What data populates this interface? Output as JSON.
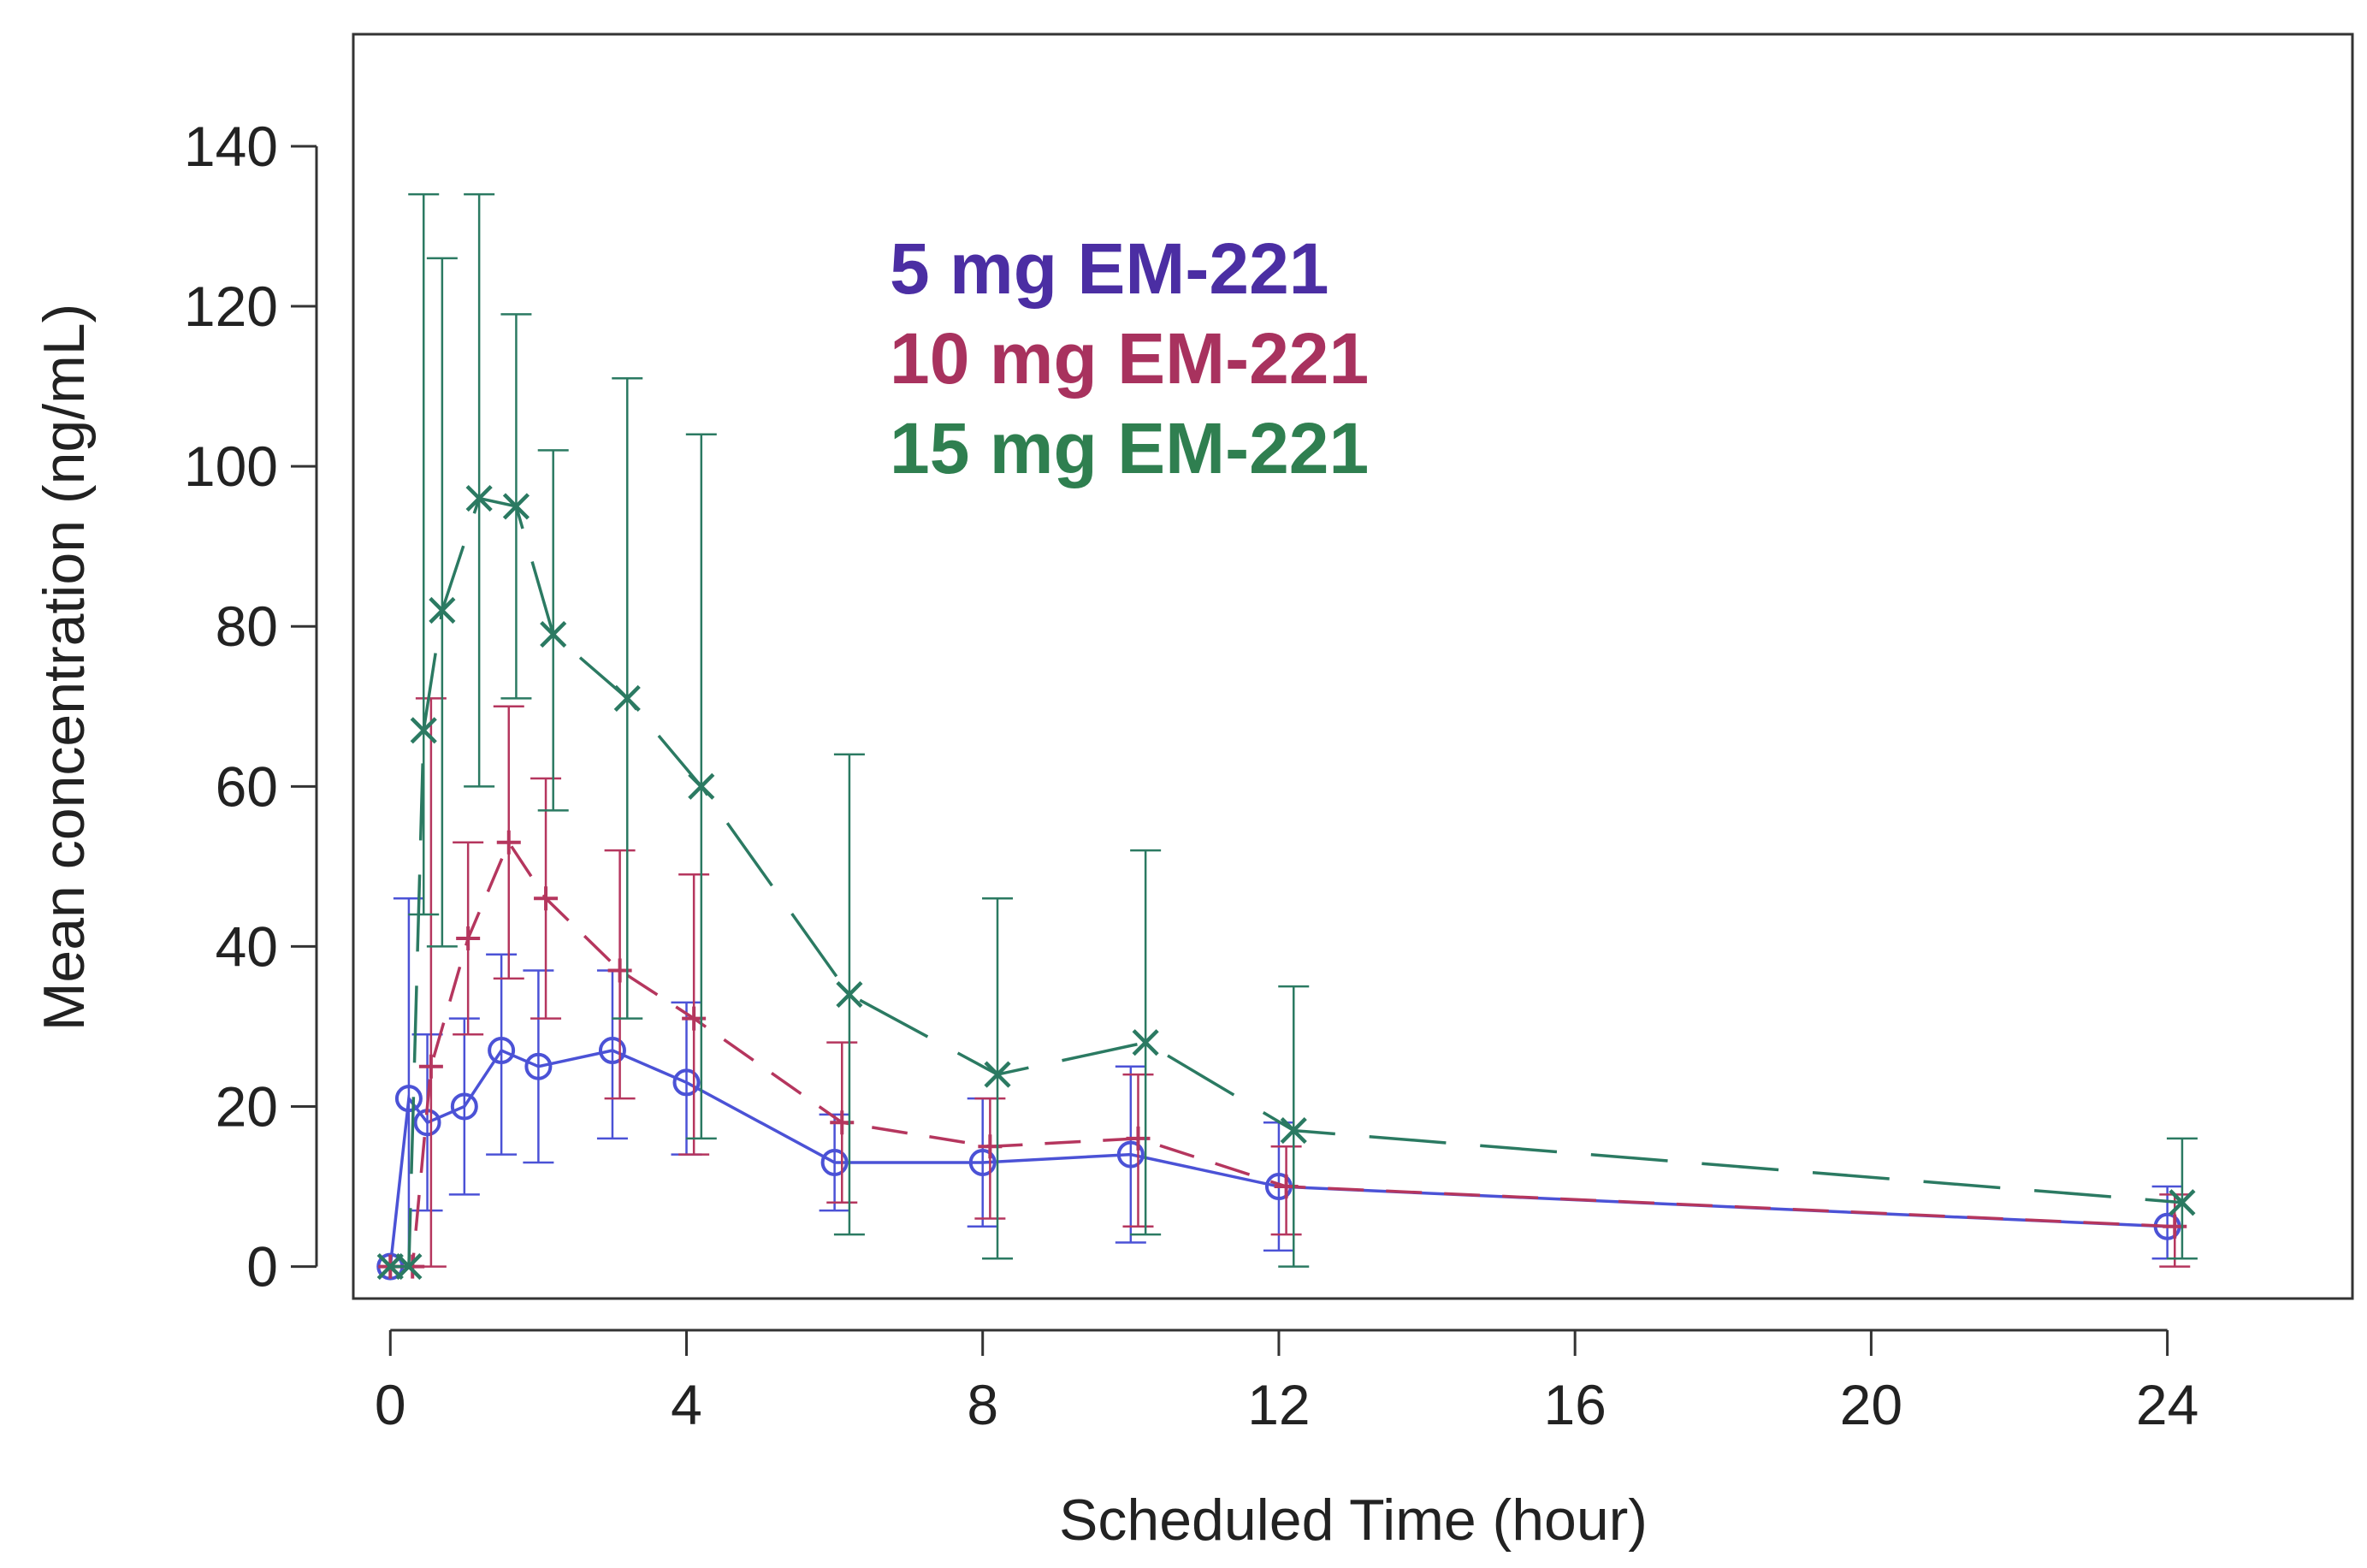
{
  "chart_data": {
    "type": "line",
    "title": "",
    "xlabel": "Scheduled Time (hour)",
    "ylabel": "Mean concentration (ng/mL)",
    "xlim": [
      -0.5,
      26.5
    ],
    "ylim": [
      -4,
      154
    ],
    "xticks": [
      0,
      4,
      8,
      12,
      16,
      20,
      24
    ],
    "yticks": [
      0,
      20,
      40,
      60,
      80,
      100,
      120,
      140
    ],
    "grid": false,
    "legend_position": "top-center",
    "series": [
      {
        "name": "5 mg EM-221",
        "color": "#4b2ea3",
        "line_color": "#4b52d6",
        "marker": "circle",
        "line_style": "solid",
        "x": [
          0,
          0.25,
          0.5,
          1,
          1.5,
          2,
          3,
          4,
          6,
          8,
          10,
          12,
          24
        ],
        "y": [
          0,
          21,
          18,
          20,
          27,
          25,
          27,
          23,
          13,
          13,
          14,
          10,
          5
        ],
        "err_low": [
          0,
          0,
          7,
          9,
          14,
          13,
          16,
          14,
          7,
          5,
          3,
          2,
          1
        ],
        "err_high": [
          0,
          46,
          29,
          31,
          39,
          37,
          37,
          33,
          19,
          21,
          25,
          18,
          10
        ]
      },
      {
        "name": "10 mg EM-221",
        "color": "#a8325e",
        "line_color": "#b5365e",
        "marker": "plus",
        "line_style": "dashed",
        "x": [
          0,
          0.3,
          0.55,
          1.05,
          1.6,
          2.1,
          3.1,
          4.1,
          6.1,
          8.1,
          10.1,
          12.1,
          24.1
        ],
        "y": [
          0,
          0,
          25,
          41,
          53,
          46,
          37,
          31,
          18,
          15,
          16,
          10,
          5
        ],
        "err_low": [
          0,
          0,
          0,
          29,
          36,
          31,
          21,
          14,
          8,
          6,
          5,
          4,
          0
        ],
        "err_high": [
          0,
          0,
          71,
          53,
          70,
          61,
          52,
          49,
          28,
          21,
          24,
          15,
          9
        ]
      },
      {
        "name": "15 mg EM-221",
        "color": "#2f7f50",
        "line_color": "#2b7a62",
        "marker": "x",
        "line_style": "long-dash",
        "x": [
          0,
          0.25,
          0.45,
          0.7,
          1.2,
          1.7,
          2.2,
          3.2,
          4.2,
          6.2,
          8.2,
          10.2,
          12.2,
          24.2
        ],
        "y": [
          0,
          0,
          67,
          82,
          96,
          95,
          79,
          71,
          60,
          34,
          24,
          28,
          17,
          8
        ],
        "err_low": [
          0,
          0,
          44,
          40,
          60,
          71,
          57,
          31,
          16,
          4,
          1,
          4,
          0,
          1
        ],
        "err_high": [
          0,
          0,
          134,
          126,
          134,
          119,
          102,
          111,
          104,
          64,
          46,
          52,
          35,
          16
        ]
      }
    ]
  }
}
